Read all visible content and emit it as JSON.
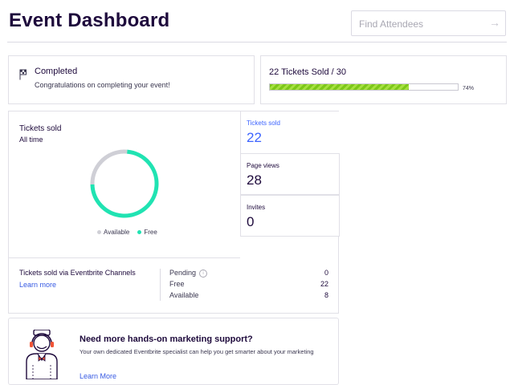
{
  "header": {
    "title": "Event Dashboard",
    "search_placeholder": "Find Attendees",
    "search_icon": "arrow-right-icon"
  },
  "status": {
    "icon": "flag-icon",
    "title": "Completed",
    "message": "Congratulations on completing your event!"
  },
  "ticket_progress": {
    "label": "22 Tickets Sold / 30",
    "percent_label": "74%",
    "fill_fraction": 0.74
  },
  "chart": {
    "title": "Tickets sold",
    "subtitle": "All time",
    "legend": [
      {
        "label": "Available",
        "color": "#cfcfd6"
      },
      {
        "label": "Free",
        "color": "#20e3b2"
      }
    ]
  },
  "chart_data": {
    "type": "pie",
    "categories": [
      "Available",
      "Free"
    ],
    "values": [
      8,
      22
    ],
    "colors": [
      "#cfcfd6",
      "#20e3b2"
    ]
  },
  "metrics": [
    {
      "label": "Tickets sold",
      "value": "22"
    },
    {
      "label": "Page views",
      "value": "28"
    },
    {
      "label": "Invites",
      "value": "0"
    }
  ],
  "channels": {
    "title": "Tickets sold via Eventbrite Channels",
    "link": "Learn more",
    "rows": [
      {
        "label": "Pending",
        "value": "0"
      },
      {
        "label": "Free",
        "value": "22"
      },
      {
        "label": "Available",
        "value": "8"
      }
    ]
  },
  "promo": {
    "title": "Need more hands-on marketing support?",
    "text": "Your own dedicated Eventbrite specialist can help you get smarter about your marketing",
    "link": "Learn More"
  },
  "colors": {
    "brand_dark": "#1e0a3c",
    "accent_blue": "#3d64ff",
    "donut_free": "#20e3b2",
    "progress_green": "#7cc719"
  }
}
